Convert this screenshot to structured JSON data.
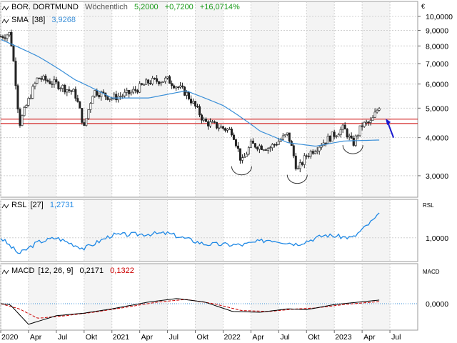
{
  "colors": {
    "candle": "#222222",
    "sma": "#3a8fd8",
    "rsl": "#1e88e5",
    "macd": "#000000",
    "signal": "#cc0000",
    "resistance": "#cc0000",
    "arrow": "#1a1ad0",
    "positive": "#1a9a1a",
    "panel_alt": "#f4f4f4",
    "grid": "#d0d0d0"
  },
  "header": {
    "title": "BOR. DORTMUND",
    "period": "Wöchentlich",
    "last": "5,2000",
    "change": "+0,7200",
    "change_pct": "+16,0714%",
    "currency": "€"
  },
  "sma_legend": {
    "label": "SMA",
    "param": "[38]",
    "value": "3,9268"
  },
  "rsl_legend": {
    "label": "RSL",
    "param": "[27]",
    "value": "1,2731",
    "axis_title": "RSL",
    "tick": "1,0000"
  },
  "macd_legend": {
    "label": "MACD",
    "param": "[12, 26, 9]",
    "value": "0,2171",
    "signal_value": "0,1322",
    "axis_title": "MACD",
    "tick": "0,0000"
  },
  "chart_data": [
    {
      "type": "candlestick",
      "title": "BOR. DORTMUND",
      "ylabel": "€",
      "yscale": "log",
      "ylim": [
        2.55,
        11.2
      ],
      "y_ticks": [
        "10,0000",
        "9,0000",
        "8,0000",
        "7,0000",
        "6,0000",
        "5,0000",
        "4,0000",
        "3,0000"
      ],
      "x_ticks": [
        "2020",
        "Apr",
        "Jul",
        "Okt",
        "2021",
        "Apr",
        "Jul",
        "Okt",
        "2022",
        "Apr",
        "Jul",
        "Okt",
        "2023",
        "Apr",
        "Jul"
      ],
      "x_range": [
        "2020-01",
        "2023-08"
      ],
      "price_keypoints": [
        {
          "t": "2020-01",
          "v": 8.6
        },
        {
          "t": "2020-02",
          "v": 8.8
        },
        {
          "t": "2020-03",
          "v": 4.4
        },
        {
          "t": "2020-04",
          "v": 5.3
        },
        {
          "t": "2020-05",
          "v": 6.3
        },
        {
          "t": "2020-07",
          "v": 6.0
        },
        {
          "t": "2020-09",
          "v": 5.6
        },
        {
          "t": "2020-10",
          "v": 4.3
        },
        {
          "t": "2020-11",
          "v": 5.7
        },
        {
          "t": "2021-01",
          "v": 5.4
        },
        {
          "t": "2021-03",
          "v": 5.6
        },
        {
          "t": "2021-05",
          "v": 6.1
        },
        {
          "t": "2021-07",
          "v": 6.2
        },
        {
          "t": "2021-09",
          "v": 5.6
        },
        {
          "t": "2021-11",
          "v": 4.5
        },
        {
          "t": "2022-01",
          "v": 4.3
        },
        {
          "t": "2022-02",
          "v": 4.2
        },
        {
          "t": "2022-03",
          "v": 3.3
        },
        {
          "t": "2022-04",
          "v": 3.8
        },
        {
          "t": "2022-06",
          "v": 3.7
        },
        {
          "t": "2022-08",
          "v": 4.1
        },
        {
          "t": "2022-09",
          "v": 3.1
        },
        {
          "t": "2022-10",
          "v": 3.5
        },
        {
          "t": "2022-12",
          "v": 3.9
        },
        {
          "t": "2023-02",
          "v": 4.3
        },
        {
          "t": "2023-03",
          "v": 3.8
        },
        {
          "t": "2023-04",
          "v": 4.4
        },
        {
          "t": "2023-05",
          "v": 4.5
        },
        {
          "t": "2023-06",
          "v": 5.2
        }
      ],
      "series": [
        {
          "name": "SMA [38]",
          "last": 3.9268,
          "keypoints": [
            {
              "t": "2020-01",
              "v": 8.4
            },
            {
              "t": "2020-05",
              "v": 7.4
            },
            {
              "t": "2020-09",
              "v": 6.2
            },
            {
              "t": "2021-01",
              "v": 5.4
            },
            {
              "t": "2021-05",
              "v": 5.4
            },
            {
              "t": "2021-09",
              "v": 5.7
            },
            {
              "t": "2022-01",
              "v": 5.1
            },
            {
              "t": "2022-05",
              "v": 4.2
            },
            {
              "t": "2022-08",
              "v": 3.85
            },
            {
              "t": "2022-11",
              "v": 3.75
            },
            {
              "t": "2023-02",
              "v": 3.9
            },
            {
              "t": "2023-06",
              "v": 3.93
            }
          ]
        }
      ],
      "resistance_lines": [
        4.6,
        4.45
      ],
      "annotations": [
        "inverse head-and-shoulders: left shoulder 2022-03, head 2022-09, right shoulder 2023-03",
        "breakout arrow 2023-06"
      ]
    },
    {
      "type": "line",
      "title": "RSL [27]",
      "y_ticks": [
        "1,0000"
      ],
      "series": [
        {
          "name": "RSL [27]",
          "last": 1.2731,
          "keypoints": [
            {
              "t": "2020-01",
              "v": 1.0
            },
            {
              "t": "2020-03",
              "v": 0.82
            },
            {
              "t": "2020-05",
              "v": 0.95
            },
            {
              "t": "2020-07",
              "v": 1.0
            },
            {
              "t": "2020-10",
              "v": 0.88
            },
            {
              "t": "2021-01",
              "v": 1.03
            },
            {
              "t": "2021-07",
              "v": 1.05
            },
            {
              "t": "2021-11",
              "v": 0.93
            },
            {
              "t": "2022-03",
              "v": 0.92
            },
            {
              "t": "2022-06",
              "v": 0.98
            },
            {
              "t": "2022-09",
              "v": 0.93
            },
            {
              "t": "2022-12",
              "v": 1.03
            },
            {
              "t": "2023-03",
              "v": 1.0
            },
            {
              "t": "2023-06",
              "v": 1.27
            }
          ]
        }
      ]
    },
    {
      "type": "line",
      "title": "MACD [12, 26, 9]",
      "y_ticks": [
        "0,0000"
      ],
      "series": [
        {
          "name": "MACD",
          "last": 0.2171,
          "keypoints": [
            {
              "t": "2020-01",
              "v": 0.0
            },
            {
              "t": "2020-02",
              "v": -0.05
            },
            {
              "t": "2020-04",
              "v": -1.2
            },
            {
              "t": "2020-07",
              "v": -0.7
            },
            {
              "t": "2020-10",
              "v": -0.55
            },
            {
              "t": "2021-01",
              "v": -0.3
            },
            {
              "t": "2021-05",
              "v": 0.1
            },
            {
              "t": "2021-08",
              "v": 0.3
            },
            {
              "t": "2021-11",
              "v": 0.1
            },
            {
              "t": "2022-02",
              "v": -0.45
            },
            {
              "t": "2022-05",
              "v": -0.5
            },
            {
              "t": "2022-08",
              "v": -0.3
            },
            {
              "t": "2022-10",
              "v": -0.35
            },
            {
              "t": "2023-01",
              "v": -0.05
            },
            {
              "t": "2023-06",
              "v": 0.22
            }
          ]
        },
        {
          "name": "Signal",
          "last": 0.1322,
          "keypoints": [
            {
              "t": "2020-01",
              "v": 0.0
            },
            {
              "t": "2020-03",
              "v": -0.3
            },
            {
              "t": "2020-05",
              "v": -0.85
            },
            {
              "t": "2020-08",
              "v": -0.7
            },
            {
              "t": "2020-11",
              "v": -0.5
            },
            {
              "t": "2021-02",
              "v": -0.25
            },
            {
              "t": "2021-06",
              "v": 0.1
            },
            {
              "t": "2021-09",
              "v": 0.25
            },
            {
              "t": "2021-12",
              "v": 0.0
            },
            {
              "t": "2022-03",
              "v": -0.4
            },
            {
              "t": "2022-06",
              "v": -0.45
            },
            {
              "t": "2022-09",
              "v": -0.3
            },
            {
              "t": "2022-11",
              "v": -0.25
            },
            {
              "t": "2023-02",
              "v": -0.05
            },
            {
              "t": "2023-06",
              "v": 0.13
            }
          ]
        }
      ]
    }
  ]
}
